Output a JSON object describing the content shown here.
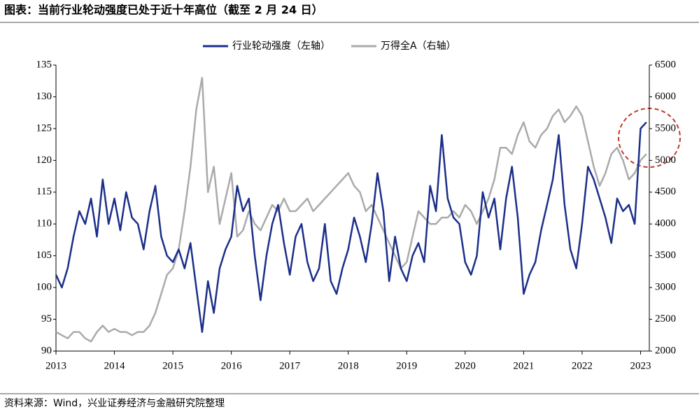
{
  "chart_data": {
    "type": "line",
    "title": "图表：当前行业轮动强度已处于近十年高位（截至 2 月 24 日）",
    "source": "资料来源：Wind，兴业证券经济与金融研究院整理",
    "x": [
      2013.0,
      2013.1,
      2013.2,
      2013.3,
      2013.4,
      2013.5,
      2013.6,
      2013.7,
      2013.8,
      2013.9,
      2014.0,
      2014.1,
      2014.2,
      2014.3,
      2014.4,
      2014.5,
      2014.6,
      2014.7,
      2014.8,
      2014.9,
      2015.0,
      2015.1,
      2015.2,
      2015.3,
      2015.4,
      2015.5,
      2015.6,
      2015.7,
      2015.8,
      2015.9,
      2016.0,
      2016.1,
      2016.2,
      2016.3,
      2016.4,
      2016.5,
      2016.6,
      2016.7,
      2016.8,
      2016.9,
      2017.0,
      2017.1,
      2017.2,
      2017.3,
      2017.4,
      2017.5,
      2017.6,
      2017.7,
      2017.8,
      2017.9,
      2018.0,
      2018.1,
      2018.2,
      2018.3,
      2018.4,
      2018.5,
      2018.6,
      2018.7,
      2018.8,
      2018.9,
      2019.0,
      2019.1,
      2019.2,
      2019.3,
      2019.4,
      2019.5,
      2019.6,
      2019.7,
      2019.8,
      2019.9,
      2020.0,
      2020.1,
      2020.2,
      2020.3,
      2020.4,
      2020.5,
      2020.6,
      2020.7,
      2020.8,
      2020.9,
      2021.0,
      2021.1,
      2021.2,
      2021.3,
      2021.4,
      2021.5,
      2021.6,
      2021.7,
      2021.8,
      2021.9,
      2022.0,
      2022.1,
      2022.2,
      2022.3,
      2022.4,
      2022.5,
      2022.6,
      2022.7,
      2022.8,
      2022.9,
      2023.0,
      2023.1
    ],
    "series": [
      {
        "name": "行业轮动强度（左轴）",
        "color": "#1b2f8a",
        "axis": "y",
        "values": [
          102,
          100,
          103,
          108,
          112,
          110,
          114,
          108,
          117,
          110,
          114,
          109,
          115,
          111,
          110,
          106,
          112,
          116,
          108,
          105,
          104,
          106,
          103,
          107,
          100,
          93,
          101,
          96,
          103,
          106,
          108,
          116,
          112,
          114,
          105,
          98,
          105,
          110,
          113,
          107,
          102,
          108,
          110,
          104,
          101,
          103,
          110,
          101,
          99,
          103,
          106,
          111,
          108,
          104,
          110,
          118,
          112,
          101,
          108,
          103,
          101,
          105,
          107,
          104,
          116,
          112,
          124,
          114,
          111,
          110,
          104,
          102,
          105,
          115,
          111,
          114,
          106,
          114,
          119,
          111,
          99,
          102,
          104,
          109,
          113,
          117,
          124,
          113,
          106,
          103,
          110,
          119,
          117,
          114,
          111,
          107,
          114,
          112,
          113,
          110,
          125,
          126
        ]
      },
      {
        "name": "万得全A（右轴）",
        "color": "#aaaaaa",
        "axis": "y2",
        "values": [
          2300,
          2250,
          2200,
          2300,
          2300,
          2200,
          2150,
          2300,
          2400,
          2300,
          2350,
          2300,
          2300,
          2250,
          2300,
          2300,
          2400,
          2600,
          2900,
          3200,
          3300,
          3600,
          4200,
          4900,
          5800,
          6300,
          4500,
          4900,
          4000,
          4400,
          4800,
          3800,
          3900,
          4200,
          4000,
          3900,
          4100,
          4300,
          4200,
          4400,
          4200,
          4200,
          4300,
          4400,
          4200,
          4300,
          4400,
          4500,
          4600,
          4700,
          4800,
          4600,
          4500,
          4200,
          4300,
          4100,
          3900,
          3700,
          3500,
          3300,
          3400,
          3800,
          4200,
          4100,
          4000,
          4000,
          4100,
          4100,
          4200,
          4100,
          4300,
          4200,
          4000,
          4200,
          4400,
          4700,
          5200,
          5200,
          5100,
          5400,
          5600,
          5300,
          5200,
          5400,
          5500,
          5700,
          5800,
          5600,
          5700,
          5850,
          5700,
          5300,
          4900,
          4600,
          4800,
          5100,
          5200,
          5000,
          4700,
          4800,
          5000,
          5100
        ]
      }
    ],
    "xlim": [
      2013,
      2023.15
    ],
    "xticks": [
      2013,
      2014,
      2015,
      2016,
      2017,
      2018,
      2019,
      2020,
      2021,
      2022,
      2023
    ],
    "ylim": [
      90,
      135
    ],
    "yticks": [
      90,
      95,
      100,
      105,
      110,
      115,
      120,
      125,
      130,
      135
    ],
    "y2lim": [
      2000,
      6500
    ],
    "y2ticks": [
      2000,
      2500,
      3000,
      3500,
      4000,
      4500,
      5000,
      5500,
      6000,
      6500
    ]
  }
}
